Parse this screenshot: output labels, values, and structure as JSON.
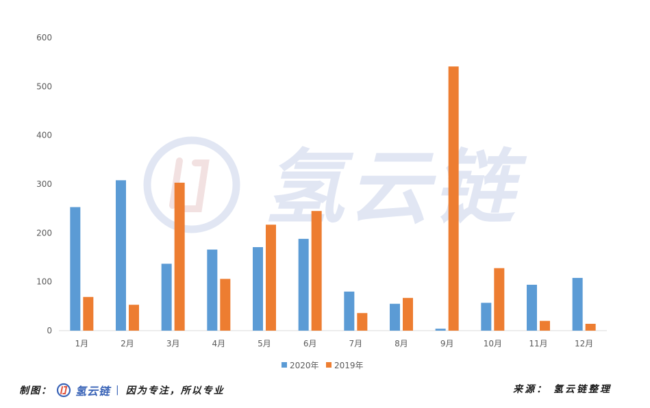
{
  "chart_data": {
    "type": "bar",
    "categories": [
      "1月",
      "2月",
      "3月",
      "4月",
      "5月",
      "6月",
      "7月",
      "8月",
      "9月",
      "10月",
      "11月",
      "12月"
    ],
    "series": [
      {
        "name": "2020年",
        "color": "#5b9bd5",
        "values": [
          253,
          308,
          137,
          166,
          171,
          188,
          80,
          55,
          4,
          57,
          94,
          108
        ]
      },
      {
        "name": "2019年",
        "color": "#ed7d31",
        "values": [
          69,
          53,
          303,
          106,
          217,
          245,
          36,
          67,
          541,
          128,
          20,
          14
        ]
      }
    ],
    "ylim": [
      0,
      600
    ],
    "yticks": [
      0,
      100,
      200,
      300,
      400,
      500,
      600
    ],
    "grid": false,
    "legend": "bottom-center"
  },
  "watermark": {
    "text": "氢云链",
    "color": "#c9d3ea"
  },
  "footer": {
    "made_by_label": "制图：",
    "brand": "氢云链",
    "separator": "|",
    "slogan": "因为专注，所以专业",
    "source": "来源：  氢云链整理"
  }
}
